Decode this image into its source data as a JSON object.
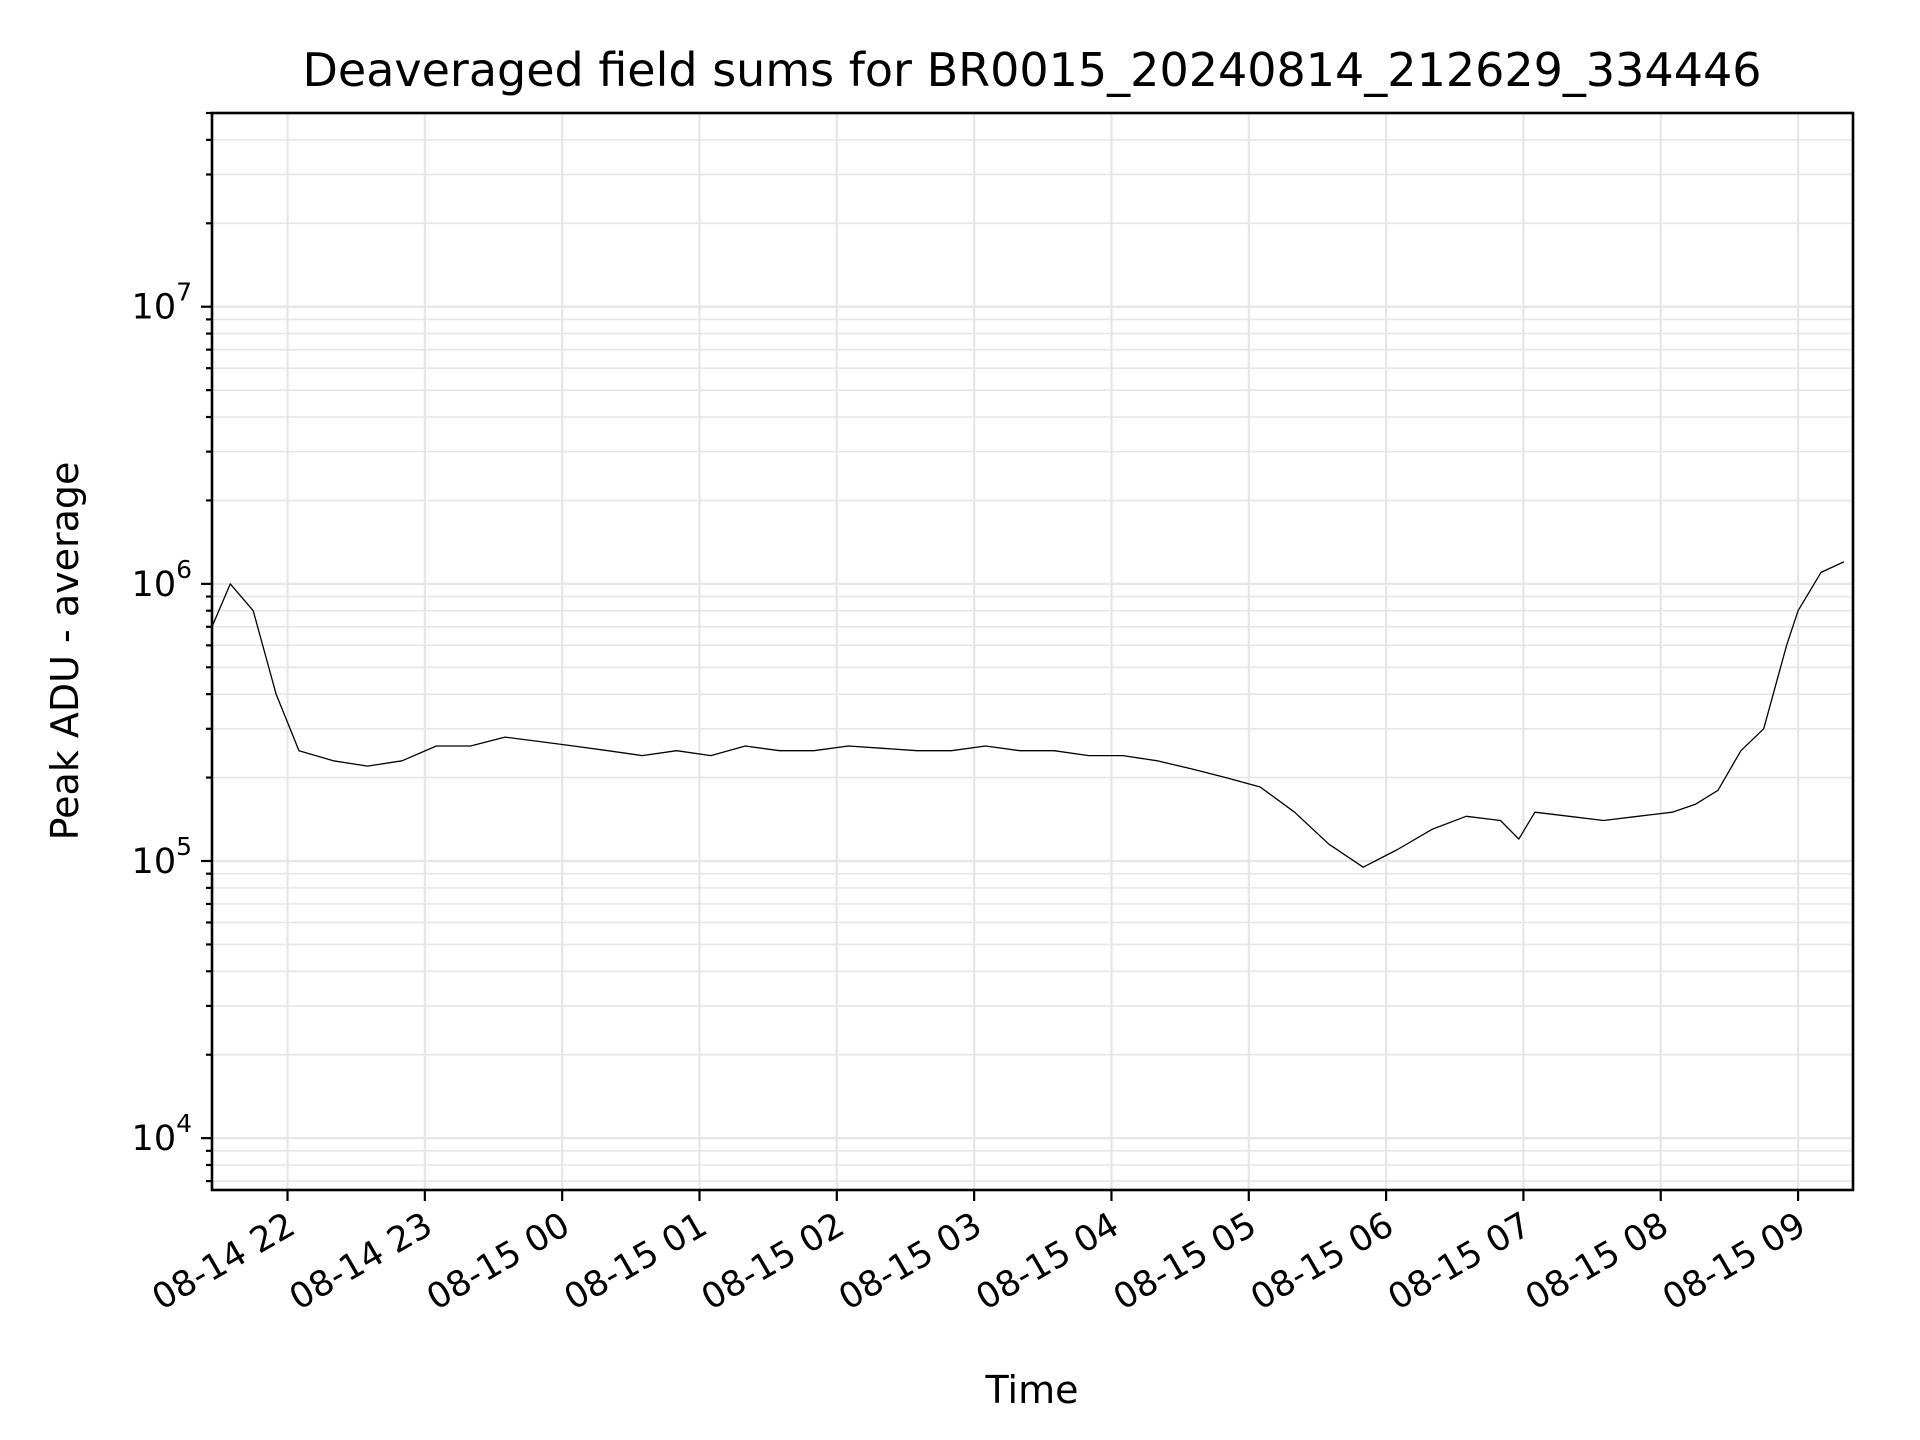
{
  "chart_data": {
    "type": "line",
    "title": "Deaveraged field sums for BR0015_20240814_212629_334446",
    "xlabel": "Time",
    "ylabel": "Peak ADU - average",
    "yscale": "log",
    "grid": true,
    "xlim": [
      "2024-08-14 21:27",
      "2024-08-15 09:24"
    ],
    "ylim": [
      6500,
      50000000
    ],
    "x_ticks": [
      {
        "value": "2024-08-14 22:00",
        "label": "08-14 22"
      },
      {
        "value": "2024-08-14 23:00",
        "label": "08-14 23"
      },
      {
        "value": "2024-08-15 00:00",
        "label": "08-15 00"
      },
      {
        "value": "2024-08-15 01:00",
        "label": "08-15 01"
      },
      {
        "value": "2024-08-15 02:00",
        "label": "08-15 02"
      },
      {
        "value": "2024-08-15 03:00",
        "label": "08-15 03"
      },
      {
        "value": "2024-08-15 04:00",
        "label": "08-15 04"
      },
      {
        "value": "2024-08-15 05:00",
        "label": "08-15 05"
      },
      {
        "value": "2024-08-15 06:00",
        "label": "08-15 06"
      },
      {
        "value": "2024-08-15 07:00",
        "label": "08-15 07"
      },
      {
        "value": "2024-08-15 08:00",
        "label": "08-15 08"
      },
      {
        "value": "2024-08-15 09:00",
        "label": "08-15 09"
      }
    ],
    "y_ticks": [
      {
        "value": 10000,
        "base": "10",
        "exp": "4"
      },
      {
        "value": 100000,
        "base": "10",
        "exp": "5"
      },
      {
        "value": 1000000,
        "base": "10",
        "exp": "6"
      },
      {
        "value": 10000000,
        "base": "10",
        "exp": "7"
      }
    ],
    "series": [
      {
        "color": "#000000",
        "x": [
          "2024-08-14 21:27",
          "2024-08-14 21:35",
          "2024-08-14 21:45",
          "2024-08-14 21:55",
          "2024-08-14 22:05",
          "2024-08-14 22:20",
          "2024-08-14 22:35",
          "2024-08-14 22:50",
          "2024-08-14 23:05",
          "2024-08-14 23:20",
          "2024-08-14 23:35",
          "2024-08-14 23:50",
          "2024-08-15 00:05",
          "2024-08-15 00:20",
          "2024-08-15 00:35",
          "2024-08-15 00:50",
          "2024-08-15 01:05",
          "2024-08-15 01:20",
          "2024-08-15 01:35",
          "2024-08-15 01:50",
          "2024-08-15 02:05",
          "2024-08-15 02:20",
          "2024-08-15 02:35",
          "2024-08-15 02:50",
          "2024-08-15 03:05",
          "2024-08-15 03:20",
          "2024-08-15 03:35",
          "2024-08-15 03:50",
          "2024-08-15 04:05",
          "2024-08-15 04:20",
          "2024-08-15 04:35",
          "2024-08-15 04:50",
          "2024-08-15 05:05",
          "2024-08-15 05:20",
          "2024-08-15 05:35",
          "2024-08-15 05:50",
          "2024-08-15 06:05",
          "2024-08-15 06:20",
          "2024-08-15 06:35",
          "2024-08-15 06:50",
          "2024-08-15 06:58",
          "2024-08-15 07:05",
          "2024-08-15 07:20",
          "2024-08-15 07:35",
          "2024-08-15 07:50",
          "2024-08-15 08:05",
          "2024-08-15 08:15",
          "2024-08-15 08:25",
          "2024-08-15 08:35",
          "2024-08-15 08:45",
          "2024-08-15 08:55",
          "2024-08-15 09:00",
          "2024-08-15 09:10",
          "2024-08-15 09:20"
        ],
        "y": [
          700000,
          1000000,
          800000,
          400000,
          250000,
          230000,
          220000,
          230000,
          260000,
          260000,
          280000,
          270000,
          260000,
          250000,
          240000,
          250000,
          240000,
          260000,
          250000,
          250000,
          260000,
          255000,
          250000,
          250000,
          260000,
          250000,
          250000,
          240000,
          240000,
          230000,
          215000,
          200000,
          185000,
          150000,
          115000,
          95000,
          110000,
          130000,
          145000,
          140000,
          120000,
          150000,
          145000,
          140000,
          145000,
          150000,
          160000,
          180000,
          250000,
          300000,
          600000,
          800000,
          1100000,
          1200000
        ]
      }
    ]
  }
}
